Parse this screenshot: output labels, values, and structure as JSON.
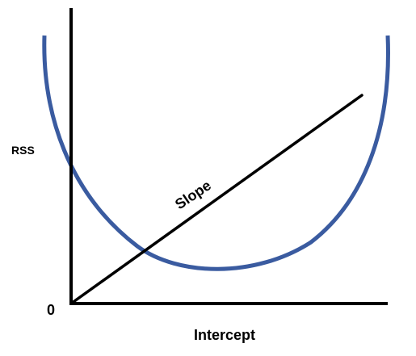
{
  "labels": {
    "y_axis": "RSS",
    "x_axis": "Intercept",
    "origin": "0",
    "line": "Slope"
  },
  "colors": {
    "curve": "#3a5ba0",
    "axes": "#000000",
    "line": "#000000"
  }
}
